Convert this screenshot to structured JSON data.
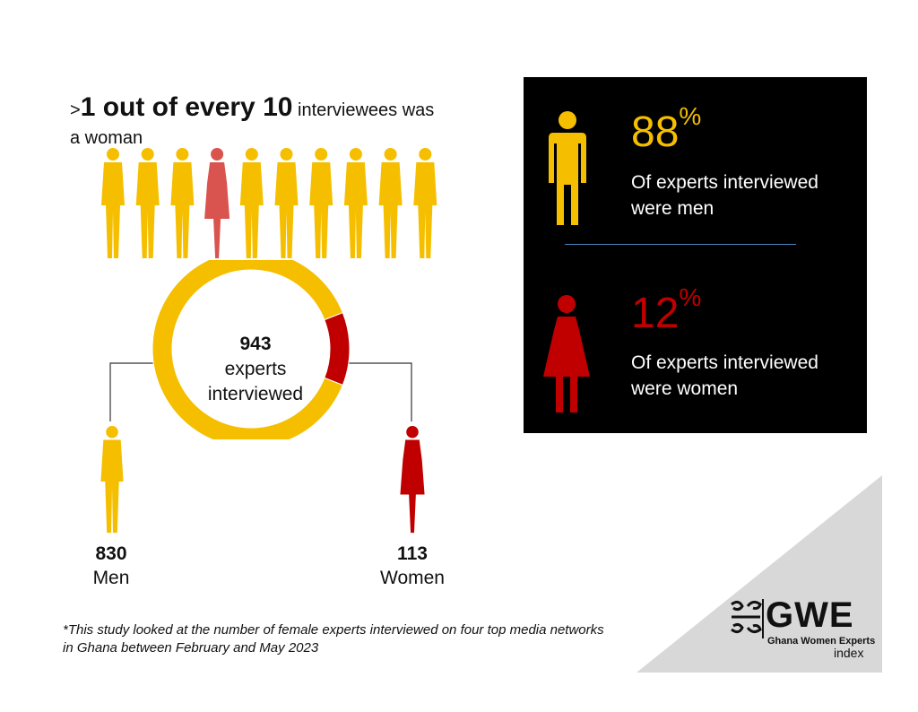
{
  "headline": {
    "prefix": ">",
    "big": "1 out of every 10",
    "rest_line1": " interviewees was",
    "rest_line2": "a woman"
  },
  "colors": {
    "men": "#f5bf00",
    "women": "#c00000",
    "highlight_woman": "#d9534f",
    "panel_bg": "#000000",
    "triangle": "#d8d8d8"
  },
  "people_row": [
    "man",
    "man",
    "man",
    "woman",
    "man",
    "man",
    "man",
    "man",
    "man",
    "man"
  ],
  "chart_data": {
    "type": "pie",
    "style": "donut",
    "categories": [
      "Men",
      "Women"
    ],
    "values": [
      830,
      113
    ],
    "percentages": [
      88,
      12
    ],
    "total": 943,
    "center_label": [
      "943",
      "experts",
      "interviewed"
    ]
  },
  "donut": {
    "total": "943",
    "caption_line1": "experts",
    "caption_line2": "interviewed"
  },
  "men": {
    "count": "830",
    "label": "Men"
  },
  "women": {
    "count": "113",
    "label": "Women"
  },
  "panel": {
    "men_pct": "88",
    "men_caption_line1": "Of experts interviewed",
    "men_caption_line2": "were men",
    "women_pct": "12",
    "women_caption_line1": "Of experts interviewed",
    "women_caption_line2": "were women",
    "pct_symbol": "%"
  },
  "footnote": {
    "line1": "*This study looked at the number of female experts interviewed on four top media networks",
    "line2": "in Ghana between February and May 2023"
  },
  "logo": {
    "word": "GWE",
    "subtitle": "Ghana Women Experts",
    "index": "index",
    "icon": "adinkra-symbol-icon"
  }
}
